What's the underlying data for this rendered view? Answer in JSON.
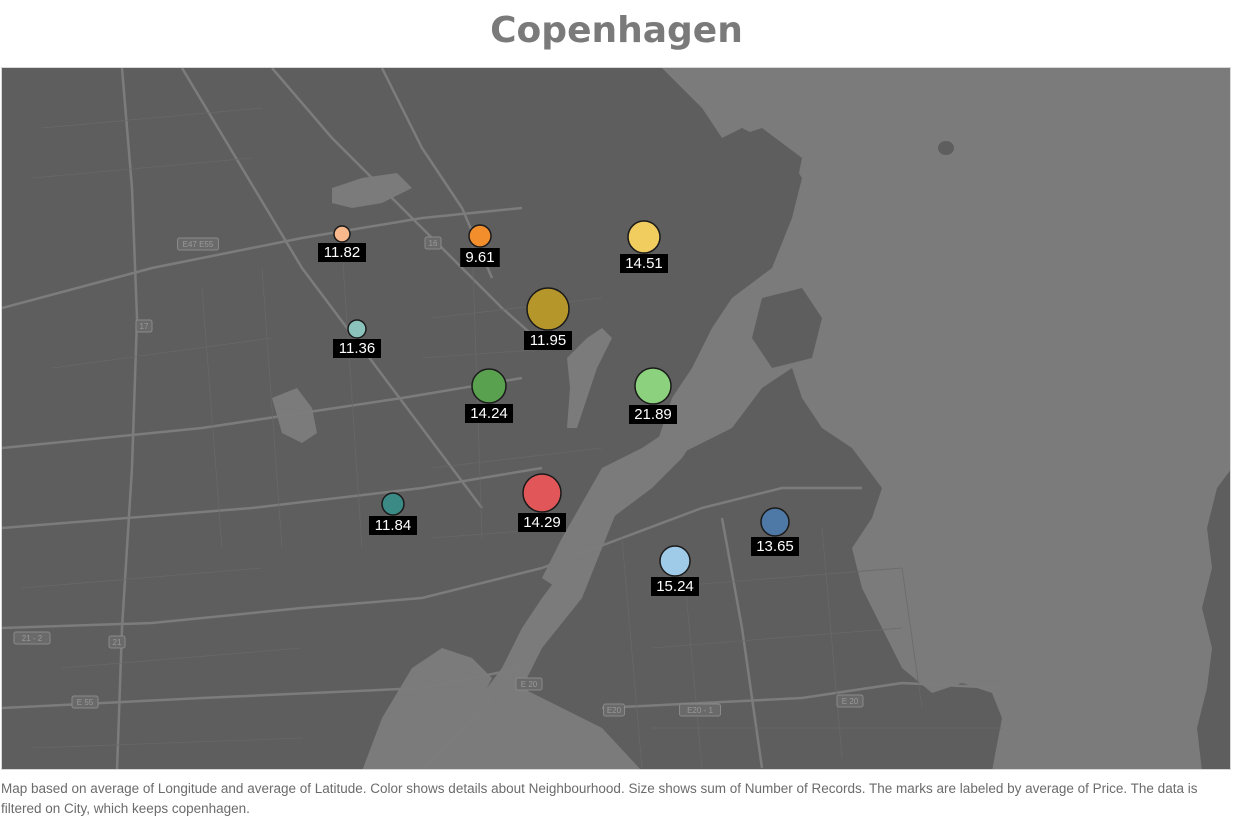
{
  "title": "Copenhagen",
  "caption": "Map based on average of Longitude and average of Latitude.  Color shows details about Neighbourhood.  Size shows sum of Number of Records.  The marks are labeled by average of Price. The data is filtered on City, which keeps copenhagen.",
  "map": {
    "land_color": "#5e5e5e",
    "water_color": "#7b7b7b",
    "road_color": "#7a7a7a",
    "road_shields": [
      "E47 E55",
      "16",
      "17",
      "21 - 2",
      "21",
      "E 55",
      "E 20",
      "E20",
      "E20 - 1",
      "E 20"
    ]
  },
  "marks": [
    {
      "label": "11.82",
      "color": "#f9b98c"
    },
    {
      "label": "9.61",
      "color": "#f28e2b"
    },
    {
      "label": "14.51",
      "color": "#f1cc5f"
    },
    {
      "label": "11.36",
      "color": "#8cc2bc"
    },
    {
      "label": "11.95",
      "color": "#b5962a"
    },
    {
      "label": "14.24",
      "color": "#59a14f"
    },
    {
      "label": "21.89",
      "color": "#8cd17d"
    },
    {
      "label": "11.84",
      "color": "#3b8a86"
    },
    {
      "label": "14.29",
      "color": "#e15759"
    },
    {
      "label": "13.65",
      "color": "#4e79a7"
    },
    {
      "label": "15.24",
      "color": "#a0cbe8"
    }
  ]
}
